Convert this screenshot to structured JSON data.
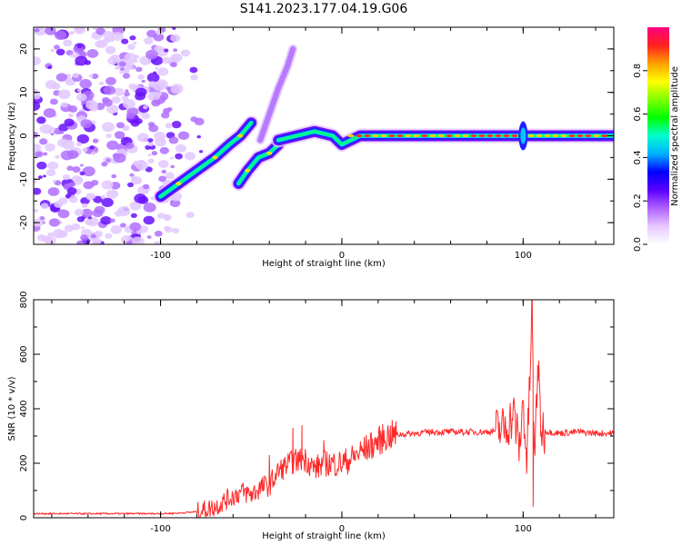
{
  "title": "S141.2023.177.04.19.G06",
  "colors": {
    "snr_line": "#ff2a2a",
    "frame": "#000000"
  },
  "chart_data": [
    {
      "type": "heatmap",
      "panel": "spectrogram",
      "xlabel": "Height of straight line (km)",
      "ylabel": "Frequency (Hz)",
      "xlim": [
        -170,
        150
      ],
      "ylim": [
        -25,
        25
      ],
      "xticks": [
        -100,
        0,
        100
      ],
      "yticks": [
        -20,
        -10,
        0,
        10,
        20
      ],
      "colorbar": {
        "label": "Normalized spectral amplitude",
        "range": [
          0,
          1
        ],
        "ticks": [
          0.0,
          0.2,
          0.4,
          0.6,
          0.8
        ],
        "colors": [
          "#ffffff",
          "#e6c8ff",
          "#b060ff",
          "#5a00ff",
          "#0000ff",
          "#00b0ff",
          "#00ffd0",
          "#00ff00",
          "#80ff00",
          "#ffff00",
          "#ffa000",
          "#ff2020",
          "#ff0080"
        ]
      },
      "ridges": [
        {
          "segment": "ascending-1",
          "x": [
            -100,
            -90,
            -80,
            -70,
            -62,
            -56,
            -50
          ],
          "y": [
            -14,
            -11,
            -8,
            -5,
            -2,
            0,
            3
          ]
        },
        {
          "segment": "ascending-2",
          "x": [
            -57,
            -52,
            -46,
            -40,
            -35
          ],
          "y": [
            -11,
            -8,
            -5,
            -4,
            -2
          ]
        },
        {
          "segment": "steep-faint",
          "x": [
            -45,
            -40,
            -35,
            -30,
            -27
          ],
          "y": [
            -1,
            5,
            11,
            16,
            20
          ]
        },
        {
          "segment": "flat",
          "x": [
            -35,
            -25,
            -15,
            -5,
            0,
            10,
            30,
            50,
            70,
            85,
            95,
            100,
            110,
            150
          ],
          "y": [
            -1,
            0,
            1,
            0,
            -2,
            0,
            0,
            0,
            0,
            0,
            0,
            0,
            0,
            0
          ]
        }
      ]
    },
    {
      "type": "line",
      "panel": "snr",
      "xlabel": "Height of straight line (km)",
      "ylabel": "SNR (10 * v/v)",
      "xlim": [
        -170,
        150
      ],
      "ylim": [
        0,
        800
      ],
      "xticks": [
        -100,
        0,
        100
      ],
      "yticks": [
        0,
        200,
        400,
        600,
        800
      ],
      "x": [
        -170,
        -150,
        -130,
        -110,
        -100,
        -90,
        -80,
        -70,
        -65,
        -60,
        -55,
        -50,
        -45,
        -40,
        -35,
        -30,
        -25,
        -20,
        -15,
        -10,
        -5,
        0,
        5,
        10,
        15,
        20,
        25,
        30,
        40,
        50,
        60,
        70,
        80,
        85,
        90,
        95,
        98,
        100,
        102,
        104,
        105,
        106,
        108,
        110,
        115,
        120,
        130,
        140,
        150
      ],
      "y": [
        15,
        15,
        15,
        15,
        15,
        17,
        22,
        40,
        60,
        80,
        95,
        85,
        110,
        120,
        170,
        195,
        210,
        215,
        180,
        200,
        200,
        200,
        215,
        240,
        260,
        280,
        300,
        305,
        310,
        315,
        315,
        315,
        315,
        320,
        330,
        380,
        250,
        430,
        200,
        560,
        800,
        180,
        560,
        320,
        315,
        310,
        315,
        310,
        310
      ],
      "spikes": [
        {
          "x": -40,
          "y": 230
        },
        {
          "x": -27,
          "y": 330
        },
        {
          "x": -22,
          "y": 340
        },
        {
          "x": -10,
          "y": 285
        },
        {
          "x": 105,
          "y": 800
        },
        {
          "x": 105.5,
          "y": 40
        },
        {
          "x": 108,
          "y": 560
        }
      ]
    }
  ]
}
